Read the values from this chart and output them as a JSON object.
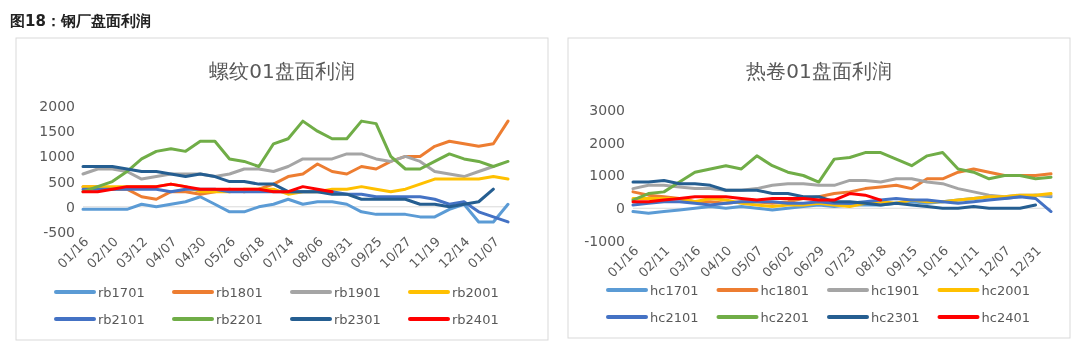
{
  "chart_data": [
    {
      "type": "line",
      "title": "螺纹01盘面利润",
      "annotations": [
        "图18：钢厂盘面利润"
      ],
      "legend": "bottom",
      "ylim": [
        -500,
        2000
      ],
      "yticks": [
        -500,
        0,
        500,
        1000,
        1500,
        2000
      ],
      "categories": [
        "01/16",
        null,
        "02/10",
        null,
        "03/12",
        null,
        "04/07",
        null,
        "04/30",
        null,
        "05/26",
        null,
        "06/18",
        null,
        "07/14",
        null,
        "08/06",
        null,
        "08/31",
        null,
        "09/25",
        null,
        "10/27",
        null,
        "11/19",
        null,
        "12/14",
        null,
        "01/07",
        null
      ],
      "series": [
        {
          "name": "rb1701",
          "color": "#5b9bd5",
          "values": [
            -50,
            -50,
            -50,
            -50,
            50,
            0,
            50,
            100,
            200,
            50,
            -100,
            -100,
            0,
            50,
            150,
            50,
            100,
            100,
            50,
            -100,
            -150,
            -150,
            -150,
            -200,
            -200,
            -50,
            50,
            -300,
            -300,
            50
          ]
        },
        {
          "name": "rb1801",
          "color": "#ed7d31",
          "values": [
            400,
            400,
            350,
            350,
            200,
            150,
            300,
            300,
            250,
            300,
            350,
            300,
            350,
            450,
            600,
            650,
            850,
            700,
            650,
            800,
            750,
            900,
            1000,
            1000,
            1200,
            1300,
            1250,
            1200,
            1250,
            1700
          ]
        },
        {
          "name": "rb1901",
          "color": "#a5a5a5",
          "values": [
            650,
            750,
            750,
            700,
            550,
            600,
            650,
            650,
            650,
            600,
            650,
            750,
            750,
            700,
            800,
            950,
            950,
            950,
            1050,
            1050,
            950,
            900,
            1000,
            900,
            700,
            650,
            600,
            700,
            800,
            null
          ]
        },
        {
          "name": "rb2001",
          "color": "#ffc000",
          "values": [
            400,
            400,
            400,
            400,
            400,
            400,
            450,
            400,
            300,
            300,
            300,
            350,
            350,
            350,
            250,
            300,
            300,
            350,
            350,
            400,
            350,
            300,
            350,
            450,
            550,
            550,
            550,
            550,
            600,
            550
          ]
        },
        {
          "name": "rb2101",
          "color": "#4472c4",
          "values": [
            350,
            350,
            350,
            350,
            350,
            350,
            300,
            350,
            350,
            350,
            300,
            300,
            300,
            300,
            300,
            300,
            300,
            300,
            250,
            250,
            200,
            200,
            200,
            200,
            150,
            50,
            100,
            -100,
            -200,
            -300
          ]
        },
        {
          "name": "rb2201",
          "color": "#70ad47",
          "values": [
            300,
            400,
            500,
            700,
            950,
            1100,
            1150,
            1100,
            1300,
            1300,
            950,
            900,
            800,
            1250,
            1350,
            1700,
            1500,
            1350,
            1350,
            1700,
            1650,
            1000,
            750,
            750,
            900,
            1050,
            950,
            900,
            800,
            900
          ]
        },
        {
          "name": "rb2301",
          "color": "#255e91",
          "values": [
            800,
            800,
            800,
            750,
            700,
            700,
            650,
            600,
            650,
            600,
            500,
            500,
            450,
            450,
            300,
            300,
            300,
            250,
            250,
            150,
            150,
            150,
            150,
            50,
            50,
            0,
            50,
            100,
            350,
            null
          ]
        },
        {
          "name": "rb2401",
          "color": "#ff0000",
          "values": [
            300,
            300,
            350,
            400,
            400,
            400,
            450,
            400,
            350,
            350,
            350,
            350,
            350,
            300,
            300,
            400,
            350,
            300,
            null,
            null,
            null,
            null,
            null,
            null,
            null,
            null,
            null,
            null,
            null,
            null
          ]
        }
      ]
    },
    {
      "type": "line",
      "title": "热卷01盘面利润",
      "legend": "bottom",
      "ylim": [
        -1000,
        3000
      ],
      "yticks": [
        -1000,
        0,
        1000,
        2000,
        3000
      ],
      "categories": [
        "01/16",
        null,
        "02/11",
        null,
        "03/16",
        null,
        "04/10",
        null,
        "05/07",
        null,
        "06/02",
        null,
        "06/29",
        null,
        "07/23",
        null,
        "08/18",
        null,
        "09/15",
        null,
        "10/16",
        null,
        "11/11",
        null,
        "12/07",
        null,
        "12/31",
        null
      ],
      "series": [
        {
          "name": "hc1701",
          "color": "#5b9bd5",
          "values": [
            -100,
            -150,
            -100,
            -50,
            0,
            50,
            0,
            50,
            0,
            -50,
            0,
            50,
            100,
            50,
            100,
            100,
            100,
            150,
            200,
            150,
            200,
            250,
            300,
            350,
            300,
            350,
            400,
            350
          ]
        },
        {
          "name": "hc1801",
          "color": "#ed7d31",
          "values": [
            500,
            400,
            350,
            300,
            200,
            200,
            150,
            200,
            200,
            150,
            200,
            300,
            350,
            450,
            500,
            600,
            650,
            700,
            600,
            900,
            900,
            1100,
            1200,
            1100,
            1000,
            1000,
            1000,
            1050
          ]
        },
        {
          "name": "hc1901",
          "color": "#a5a5a5",
          "values": [
            600,
            700,
            700,
            650,
            600,
            600,
            550,
            550,
            600,
            700,
            750,
            750,
            700,
            700,
            850,
            850,
            800,
            900,
            900,
            800,
            750,
            600,
            500,
            400,
            350,
            400,
            400,
            400
          ]
        },
        {
          "name": "hc2001",
          "color": "#ffc000",
          "values": [
            300,
            300,
            300,
            300,
            200,
            300,
            250,
            150,
            100,
            50,
            100,
            100,
            150,
            100,
            50,
            150,
            200,
            150,
            250,
            200,
            200,
            250,
            300,
            350,
            350,
            400,
            400,
            450
          ]
        },
        {
          "name": "hc2101",
          "color": "#4472c4",
          "values": [
            100,
            150,
            200,
            200,
            150,
            100,
            150,
            200,
            200,
            200,
            150,
            150,
            200,
            150,
            150,
            200,
            250,
            300,
            250,
            250,
            200,
            150,
            200,
            250,
            300,
            350,
            300,
            -100
          ]
        },
        {
          "name": "hc2201",
          "color": "#70ad47",
          "values": [
            250,
            450,
            500,
            800,
            1100,
            1200,
            1300,
            1200,
            1600,
            1300,
            1100,
            1000,
            800,
            1500,
            1550,
            1700,
            1700,
            1500,
            1300,
            1600,
            1700,
            1200,
            1100,
            900,
            1000,
            1000,
            900,
            950
          ]
        },
        {
          "name": "hc2301",
          "color": "#255e91",
          "values": [
            800,
            800,
            850,
            750,
            750,
            700,
            550,
            550,
            550,
            450,
            450,
            350,
            350,
            200,
            200,
            150,
            100,
            150,
            100,
            50,
            0,
            0,
            50,
            0,
            0,
            0,
            100,
            null
          ]
        },
        {
          "name": "hc2401",
          "color": "#ff0000",
          "values": [
            200,
            200,
            250,
            300,
            350,
            350,
            350,
            300,
            250,
            300,
            300,
            300,
            250,
            250,
            450,
            400,
            250,
            null,
            null,
            null,
            null,
            null,
            null,
            null,
            null,
            null,
            null,
            null
          ]
        }
      ]
    }
  ]
}
